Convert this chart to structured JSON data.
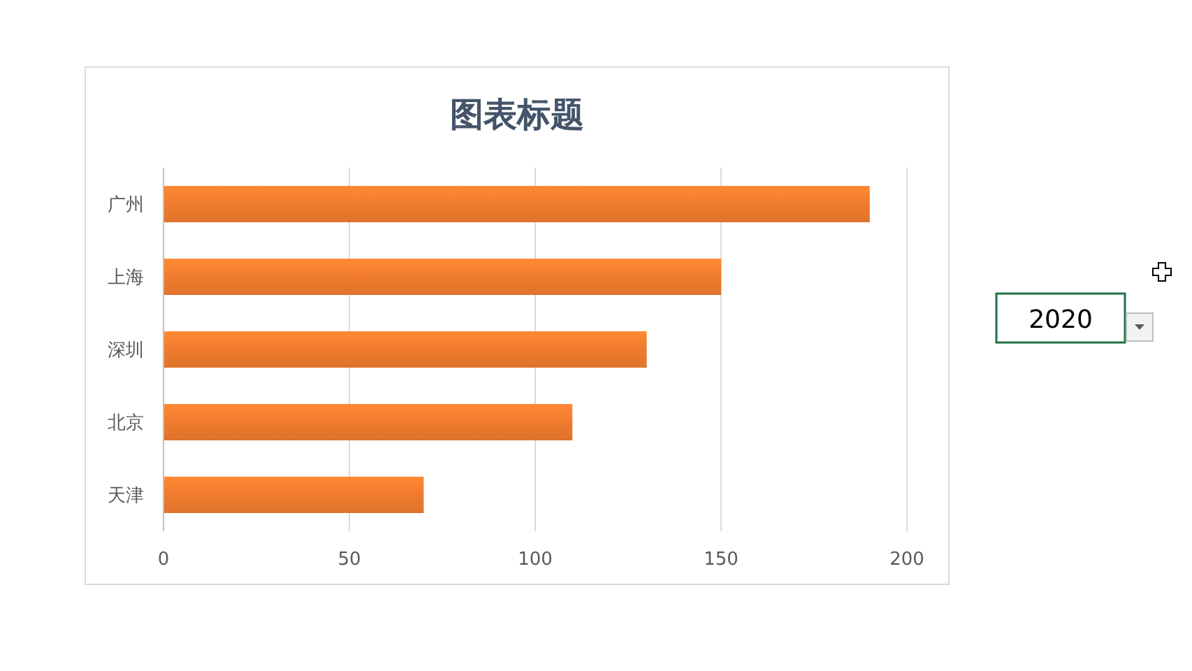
{
  "chart_data": {
    "type": "bar",
    "orientation": "horizontal",
    "title": "图表标题",
    "categories": [
      "广州",
      "上海",
      "深圳",
      "北京",
      "天津"
    ],
    "values": [
      190,
      150,
      130,
      110,
      70
    ],
    "color": "#ef7b2e",
    "xlim": [
      0,
      200
    ],
    "xticks": [
      0,
      50,
      100,
      150,
      200
    ],
    "grid": "x",
    "annotations": [
      "2020"
    ]
  }
}
